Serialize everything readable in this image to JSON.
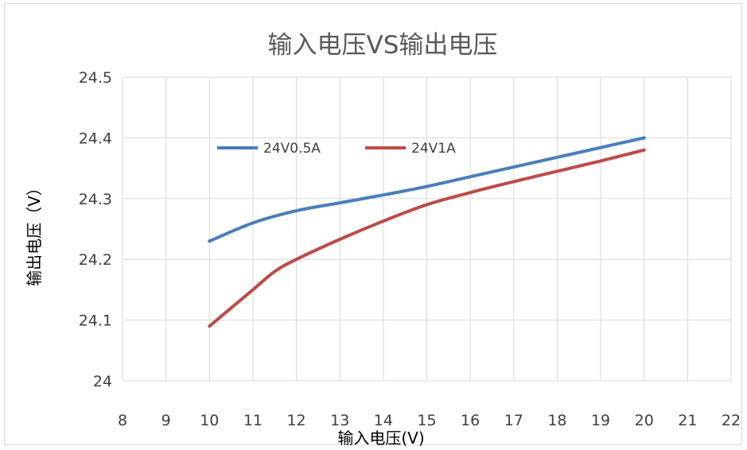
{
  "chart_data": {
    "type": "line",
    "title": "输入电压VS输出电压",
    "xlabel": "输入电压(V)",
    "ylabel": "输出电压（V）",
    "xlim": [
      8,
      22
    ],
    "ylim": [
      24,
      24.5
    ],
    "xticks": [
      "8",
      "9",
      "10",
      "11",
      "12",
      "13",
      "14",
      "15",
      "16",
      "17",
      "18",
      "19",
      "20",
      "21",
      "22"
    ],
    "yticks": [
      "24",
      "24.1",
      "24.2",
      "24.3",
      "24.4",
      "24.5"
    ],
    "grid": true,
    "legend_position": "top-left",
    "series": [
      {
        "name": "24V0.5A",
        "color": "#4a7ebb",
        "x": [
          10,
          11,
          12,
          13,
          14,
          15,
          16,
          17,
          18,
          19,
          20
        ],
        "y": [
          24.23,
          24.26,
          24.28,
          24.293,
          24.306,
          24.32,
          24.336,
          24.352,
          24.368,
          24.384,
          24.4
        ]
      },
      {
        "name": "24V1A",
        "color": "#be4b48",
        "x": [
          10,
          11,
          11.5,
          12,
          13,
          14,
          15,
          16,
          17,
          18,
          19,
          20
        ],
        "y": [
          24.09,
          24.15,
          24.18,
          24.2,
          24.233,
          24.263,
          24.29,
          24.31,
          24.328,
          24.345,
          24.362,
          24.38
        ]
      }
    ]
  }
}
